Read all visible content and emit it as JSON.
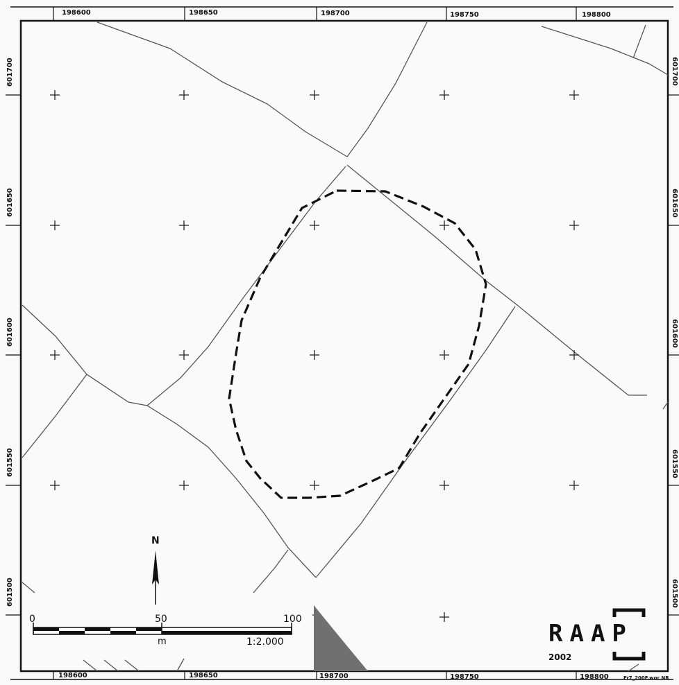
{
  "map": {
    "grid_x_labels_top": [
      "198600",
      "198650",
      "198700",
      "198750",
      "198800"
    ],
    "grid_x_labels_bottom": [
      "198600",
      "198650",
      "198700",
      "198750",
      "198800"
    ],
    "grid_y_labels_left": [
      "601700",
      "601650",
      "601600",
      "601550",
      "601500"
    ],
    "grid_y_labels_right": [
      "601700",
      "601650",
      "601600",
      "601550",
      "601500"
    ]
  },
  "north_arrow": {
    "label": "N"
  },
  "scale_bar": {
    "tick_0": "0",
    "tick_50": "50",
    "tick_100": "100",
    "unit": "m",
    "ratio": "1:2.000"
  },
  "logo": {
    "text": "RAAP",
    "year": "2002"
  },
  "footer": {
    "file_reference": "Fr7_200F.wor NR"
  },
  "colors": {
    "frame": "#111111",
    "parcel_lines": "#555555",
    "boundary_dash": "#111111",
    "shaded_corner": "#707070"
  }
}
